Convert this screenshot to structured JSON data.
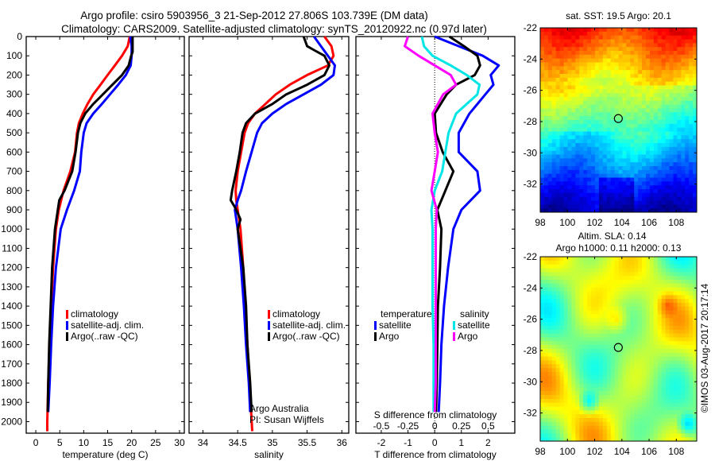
{
  "header": {
    "title_line1": "Argo profile: csiro 5903956_3 21-Sep-2012 27.806S 103.739E (DM data)",
    "title_line2": "Climatology: CARS2009. Satellite-adjusted climatology: synTS_20120922.nc (0.97d later)"
  },
  "colors": {
    "climatology": "#ff0000",
    "satellite": "#0000ff",
    "argo": "#000000",
    "sal_satellite": "#00e5e5",
    "sal_argo": "#ff00ff"
  },
  "chart_data": [
    {
      "type": "line",
      "id": "temperature",
      "xlabel": "temperature (deg C)",
      "ylabel": "",
      "xlim": [
        -2,
        31
      ],
      "ylim": [
        2060,
        0
      ],
      "xticks": [
        0,
        5,
        10,
        15,
        20,
        25,
        30
      ],
      "yticks": [
        0,
        100,
        200,
        300,
        400,
        500,
        600,
        700,
        800,
        900,
        1000,
        1100,
        1200,
        1300,
        1400,
        1500,
        1600,
        1700,
        1800,
        1900,
        2000
      ],
      "legend": [
        "climatology",
        "satellite-adj. clim.",
        "Argo(..raw -QC)"
      ],
      "legend_position": "lower-center",
      "series": [
        {
          "name": "climatology",
          "color": "#ff0000",
          "depth": [
            0,
            50,
            100,
            150,
            200,
            250,
            300,
            350,
            400,
            450,
            500,
            600,
            700,
            800,
            900,
            1000,
            1200,
            1400,
            1600,
            1800,
            2000,
            2050
          ],
          "values": [
            19.6,
            19.2,
            18.0,
            16.5,
            15.0,
            13.5,
            12.0,
            10.8,
            9.8,
            9.0,
            8.6,
            8.2,
            7.2,
            5.8,
            4.8,
            4.2,
            3.6,
            3.2,
            2.9,
            2.6,
            2.4,
            2.4
          ]
        },
        {
          "name": "satellite-adj. clim.",
          "color": "#0000ff",
          "depth": [
            0,
            50,
            100,
            150,
            200,
            250,
            300,
            350,
            400,
            450,
            500,
            600,
            700,
            800,
            900,
            1000,
            1200,
            1400,
            1600,
            1800,
            1950
          ],
          "values": [
            19.7,
            20.0,
            20.0,
            19.8,
            18.8,
            17.2,
            15.5,
            13.8,
            12.0,
            10.6,
            10.0,
            9.5,
            9.2,
            8.0,
            6.5,
            5.2,
            4.2,
            3.6,
            3.2,
            2.9,
            2.6
          ]
        },
        {
          "name": "Argo(..raw -QC)",
          "color": "#000000",
          "depth": [
            0,
            50,
            80,
            100,
            150,
            200,
            250,
            300,
            350,
            400,
            450,
            500,
            600,
            700,
            800,
            850,
            900,
            1000,
            1200,
            1400,
            1600,
            1800,
            1950
          ],
          "values": [
            20.2,
            20.2,
            20.2,
            19.9,
            19.4,
            18.0,
            16.0,
            14.0,
            12.0,
            10.3,
            9.3,
            8.8,
            8.3,
            7.6,
            6.0,
            4.9,
            4.6,
            4.0,
            3.4,
            3.1,
            2.8,
            2.6,
            2.5
          ]
        }
      ]
    },
    {
      "type": "line",
      "id": "salinity",
      "xlabel": "salinity",
      "xlim": [
        33.8,
        36.1
      ],
      "ylim": [
        2060,
        0
      ],
      "xticks": [
        34,
        34.5,
        35,
        35.5,
        36
      ],
      "xtick_labels": [
        "34",
        "34.5",
        "35",
        "35.5",
        "36"
      ],
      "legend": [
        "climatology",
        "satellite-adj. clim.",
        "Argo(..raw -QC)"
      ],
      "legend_position": "lower-right",
      "annotation": [
        "Argo Australia",
        "PI: Susan Wijffels"
      ],
      "series": [
        {
          "name": "climatology",
          "color": "#ff0000",
          "depth": [
            0,
            50,
            100,
            150,
            200,
            250,
            300,
            350,
            400,
            450,
            500,
            600,
            700,
            800,
            850,
            900,
            1000,
            1200,
            1400,
            1600,
            1800,
            2050
          ],
          "values": [
            35.75,
            35.85,
            35.88,
            35.8,
            35.5,
            35.25,
            35.05,
            34.9,
            34.75,
            34.65,
            34.6,
            34.55,
            34.5,
            34.47,
            34.48,
            34.5,
            34.54,
            34.58,
            34.61,
            34.64,
            34.67,
            34.71
          ]
        },
        {
          "name": "satellite-adj. clim.",
          "color": "#0000ff",
          "depth": [
            0,
            50,
            100,
            150,
            200,
            250,
            300,
            350,
            400,
            450,
            500,
            600,
            700,
            800,
            850,
            900,
            1000,
            1200,
            1400,
            1600,
            1800,
            1950
          ],
          "values": [
            35.6,
            35.7,
            35.8,
            35.9,
            35.88,
            35.7,
            35.45,
            35.2,
            35.0,
            34.85,
            34.78,
            34.7,
            34.62,
            34.55,
            34.5,
            34.46,
            34.5,
            34.55,
            34.59,
            34.62,
            34.66,
            34.68
          ]
        },
        {
          "name": "Argo(..raw -QC)",
          "color": "#000000",
          "depth": [
            0,
            50,
            70,
            100,
            150,
            200,
            250,
            300,
            350,
            400,
            450,
            500,
            600,
            700,
            800,
            850,
            880,
            900,
            950,
            1000,
            1200,
            1400,
            1600,
            1800,
            1950
          ],
          "values": [
            35.45,
            35.5,
            35.6,
            35.75,
            35.82,
            35.75,
            35.5,
            35.2,
            35.0,
            34.75,
            34.62,
            34.57,
            34.53,
            34.48,
            34.42,
            34.4,
            34.45,
            34.48,
            34.54,
            34.5,
            34.58,
            34.62,
            34.64,
            34.68,
            34.7
          ]
        }
      ]
    },
    {
      "type": "line",
      "id": "difference",
      "xlabel": "T difference from climatology",
      "x2label": "S difference from climatology",
      "xlim": [
        -2.95,
        3.0
      ],
      "ylim": [
        2060,
        0
      ],
      "xticks": [
        -2,
        -1,
        0,
        1,
        2
      ],
      "x2lim": [
        -0.7375,
        0.75
      ],
      "x2ticks": [
        -0.5,
        -0.25,
        0,
        0.25,
        0.5
      ],
      "x2tick_labels": [
        "-0.5",
        "-0.25",
        "0",
        "0.25",
        "0.5"
      ],
      "legend": {
        "temperature": [
          "satellite",
          "Argo"
        ],
        "salinity": [
          "satellite",
          "Argo"
        ]
      },
      "legend_position": "lower-center",
      "series": [
        {
          "name": "temperature satellite",
          "color": "#0000ff",
          "axis": "T",
          "depth": [
            0,
            50,
            100,
            150,
            200,
            250,
            300,
            400,
            500,
            600,
            700,
            800,
            900,
            1000,
            1200,
            1400,
            1600,
            1800,
            1950
          ],
          "values": [
            0.0,
            0.9,
            1.8,
            2.4,
            2.1,
            2.2,
            1.9,
            1.3,
            0.9,
            0.9,
            1.6,
            1.7,
            1.0,
            0.7,
            0.5,
            0.35,
            0.25,
            0.2,
            0.15
          ]
        },
        {
          "name": "temperature Argo",
          "color": "#000000",
          "axis": "T",
          "depth": [
            0,
            50,
            100,
            150,
            200,
            250,
            300,
            400,
            500,
            600,
            700,
            800,
            900,
            1000,
            1200,
            1400,
            1600,
            1800,
            1950
          ],
          "values": [
            0.55,
            1.1,
            1.6,
            1.7,
            1.5,
            0.8,
            0.45,
            0.0,
            0.05,
            0.3,
            0.7,
            0.4,
            0.1,
            0.25,
            0.2,
            0.12,
            0.1,
            0.08,
            0.05
          ]
        },
        {
          "name": "salinity satellite",
          "color": "#00e5e5",
          "axis": "S",
          "depth": [
            0,
            50,
            100,
            150,
            200,
            250,
            300,
            400,
            500,
            600,
            700,
            800,
            900,
            1000,
            1200,
            1400,
            1600,
            1800,
            1950
          ],
          "values": [
            -0.12,
            -0.1,
            -0.02,
            0.15,
            0.3,
            0.42,
            0.4,
            0.2,
            0.13,
            0.1,
            0.07,
            0.0,
            -0.03,
            -0.02,
            -0.02,
            -0.02,
            -0.01,
            -0.01,
            -0.01
          ]
        },
        {
          "name": "salinity Argo",
          "color": "#ff00ff",
          "axis": "S",
          "depth": [
            0,
            50,
            100,
            150,
            200,
            250,
            300,
            400,
            500,
            600,
            700,
            800,
            900,
            1000,
            1200,
            1400,
            1600,
            1800,
            1950
          ],
          "values": [
            -0.25,
            -0.28,
            -0.15,
            0.0,
            0.15,
            0.2,
            0.08,
            -0.02,
            0.0,
            0.03,
            0.0,
            -0.03,
            0.02,
            0.01,
            0.01,
            0.01,
            0.01,
            0.01,
            0.0
          ]
        }
      ]
    },
    {
      "type": "heatmap",
      "id": "sst-map",
      "title": "sat. SST: 19.5 Argo: 20.1",
      "xlim": [
        98,
        109.5
      ],
      "ylim": [
        -33.8,
        -22
      ],
      "xticks": [
        98,
        100,
        102,
        104,
        106,
        108
      ],
      "yticks": [
        -22,
        -24,
        -26,
        -28,
        -30,
        -32
      ],
      "marker": {
        "lon": 103.739,
        "lat": -27.806
      },
      "description": "SST field: warm (red/orange) in north, yellow/green mid, cool blue in south"
    },
    {
      "type": "heatmap",
      "id": "sla-map",
      "title": "Altim. SLA: 0.14",
      "subtitle": "Argo h1000: 0.11 h2000: 0.13",
      "xlim": [
        98,
        109.5
      ],
      "ylim": [
        -33.8,
        -22
      ],
      "xticks": [
        98,
        100,
        102,
        104,
        106,
        108
      ],
      "yticks": [
        -22,
        -24,
        -26,
        -28,
        -30,
        -32
      ],
      "marker": {
        "lon": 103.739,
        "lat": -27.806
      },
      "description": "Sea level anomaly field: green background with orange highs and cyan lows"
    }
  ],
  "footer": {
    "credit": "©IMOS 03-Aug-2017 20:17:14"
  }
}
